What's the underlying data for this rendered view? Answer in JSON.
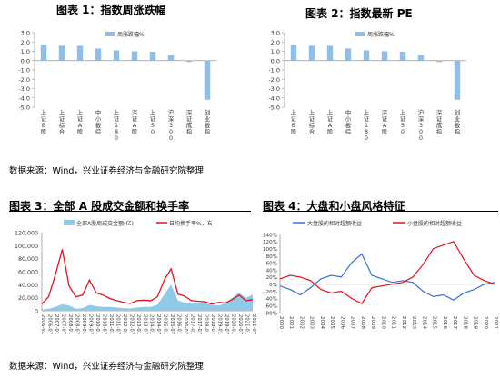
{
  "titles": {
    "fig1": "图表 1：指数周涨跌幅",
    "fig2": "图表 2：指数最新 PE",
    "fig3": "图表 3：全部 A 股成交金额和换手率",
    "fig4": "图表 4：大盘和小盘风格特征"
  },
  "sources": {
    "top": "数据来源：Wind，兴业证券经济与金融研究院整理",
    "bottom": "数据来源：Wind，兴业证券经济与金融研究院整理"
  },
  "colors": {
    "bar": "#8fbfe8",
    "area": "#8fcbe8",
    "red": "#e8111e",
    "blue": "#3a6fd8"
  },
  "chart_data": [
    {
      "type": "bar",
      "legend": [
        "周涨跌幅%"
      ],
      "categories": [
        "上证B股",
        "上证综合",
        "上证A股",
        "中小板综",
        "上证180",
        "深证A股",
        "上证50",
        "沪深300",
        "深证成指",
        "创业板指"
      ],
      "series": [
        {
          "name": "周涨跌幅%",
          "values": [
            1.7,
            1.6,
            1.6,
            1.3,
            1.1,
            1.0,
            0.95,
            0.6,
            -0.15,
            -4.2
          ]
        }
      ],
      "ylim": [
        -5.0,
        3.0
      ],
      "yticks": [
        "3.0",
        "2.0",
        "1.0",
        "0.0",
        "-1.0",
        "-2.0",
        "-3.0",
        "-4.0",
        "-5.0"
      ]
    },
    {
      "type": "bar",
      "legend": [
        "周涨跌幅%"
      ],
      "categories": [
        "上证B股",
        "上证综合",
        "上证A股",
        "中小板综",
        "上证180",
        "深证A股",
        "上证50",
        "沪深300",
        "深证成指",
        "创业板指"
      ],
      "series": [
        {
          "name": "周涨跌幅%",
          "values": [
            1.7,
            1.6,
            1.6,
            1.3,
            1.1,
            1.0,
            0.95,
            0.6,
            -0.15,
            -4.2
          ]
        }
      ],
      "ylim": [
        -5.0,
        3.0
      ],
      "yticks": [
        "3.0",
        "2.0",
        "1.0",
        "0.0",
        "-1.0",
        "-2.0",
        "-3.0",
        "-4.0",
        "-5.0"
      ]
    },
    {
      "type": "area",
      "legend": [
        "全部A股周成交金额(亿)",
        "日均换手率%，右"
      ],
      "x": [
        "2006-01",
        "2006-07",
        "2007-01",
        "2007-07",
        "2008-01",
        "2008-07",
        "2009-01",
        "2009-07",
        "2010-01",
        "2010-07",
        "2011-01",
        "2011-07",
        "2012-01",
        "2012-07",
        "2013-01",
        "2013-07",
        "2014-01",
        "2014-07",
        "2015-01",
        "2015-07",
        "2016-01",
        "2016-07",
        "2017-01",
        "2017-07",
        "2018-01",
        "2018-07",
        "2019-01",
        "2019-07",
        "2020-01",
        "2020-07",
        "2021-01",
        "2021-07"
      ],
      "series": [
        {
          "name": "全部A股周成交金额(亿)",
          "axis": "left",
          "values": [
            2000,
            3000,
            6000,
            10000,
            8000,
            3000,
            4000,
            9000,
            7000,
            6000,
            6000,
            5000,
            4000,
            3500,
            5000,
            6000,
            6000,
            9000,
            25000,
            40000,
            16000,
            12000,
            11000,
            12000,
            12000,
            9000,
            8000,
            12000,
            20000,
            28000,
            20000,
            25000
          ]
        },
        {
          "name": "日均换手率%，右",
          "axis": "right",
          "values": [
            1.2,
            2.5,
            6.5,
            11.0,
            4.5,
            2.5,
            2.8,
            5.5,
            3.2,
            2.8,
            2.2,
            1.8,
            1.5,
            1.3,
            1.8,
            1.9,
            1.8,
            2.5,
            5.5,
            7.5,
            3.0,
            2.6,
            1.8,
            1.7,
            1.6,
            1.2,
            1.5,
            1.4,
            2.0,
            2.8,
            1.8,
            2.0
          ]
        }
      ],
      "ylim": [
        0,
        120000
      ],
      "yticks": [
        "120,000",
        "100,000",
        "80,000",
        "60,000",
        "40,000",
        "20,000",
        "0"
      ]
    },
    {
      "type": "line",
      "legend": [
        "大盘股的相对超额收益",
        "小盘股的相对超额收益"
      ],
      "x": [
        "2000",
        "2001",
        "2002",
        "2003",
        "2004",
        "2005",
        "2006",
        "2007",
        "2008",
        "2009",
        "2010",
        "2011",
        "2012",
        "2013",
        "2014",
        "2015",
        "2016",
        "2017",
        "2018",
        "2019",
        "2020",
        "2021"
      ],
      "series": [
        {
          "name": "大盘股的相对超额收益",
          "values": [
            -5,
            -15,
            -30,
            -10,
            15,
            25,
            20,
            60,
            85,
            25,
            15,
            5,
            10,
            5,
            -20,
            -35,
            -30,
            -45,
            -25,
            -15,
            0,
            5
          ]
        },
        {
          "name": "小盘股的相对超额收益",
          "values": [
            15,
            25,
            20,
            10,
            -15,
            -25,
            -20,
            -40,
            -55,
            -10,
            -5,
            0,
            5,
            20,
            55,
            100,
            110,
            120,
            70,
            25,
            10,
            0
          ]
        }
      ],
      "ylim": [
        -80,
        140
      ],
      "yticks": [
        "140%",
        "120%",
        "100%",
        "80%",
        "60%",
        "40%",
        "20%",
        "0%",
        "-20%",
        "-40%",
        "-60%",
        "-80%"
      ]
    }
  ]
}
